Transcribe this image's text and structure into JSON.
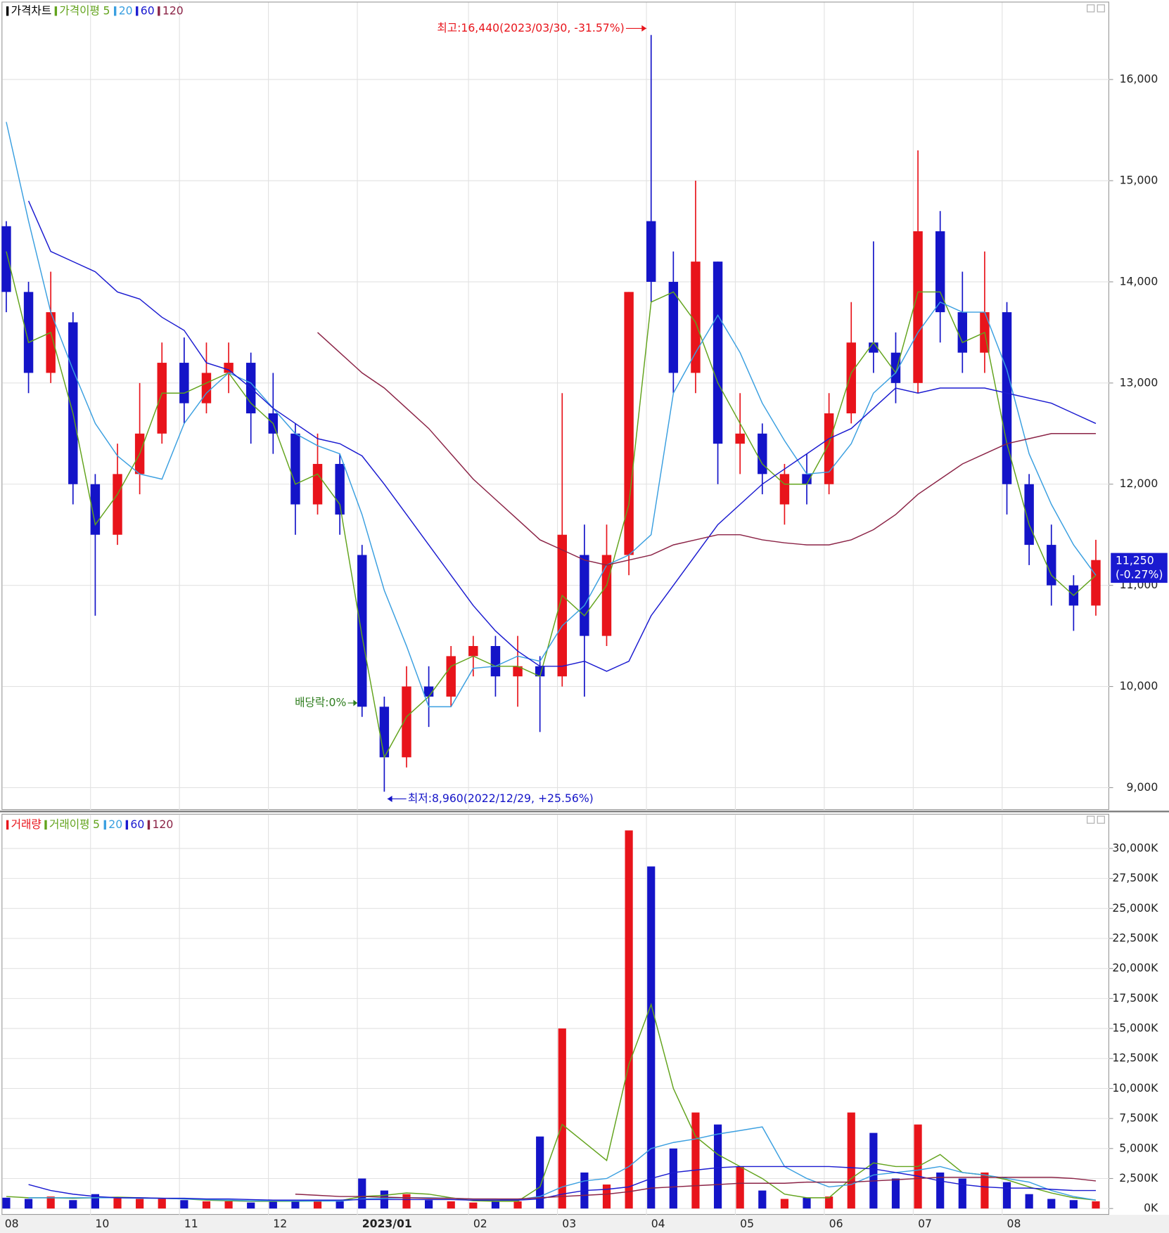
{
  "chart_data": [
    {
      "type": "candlestick",
      "legend_title": "가격차트",
      "ma_legend_title": "가격이평",
      "categories": [
        "08",
        null,
        null,
        null,
        "10",
        null,
        null,
        null,
        "11",
        null,
        null,
        null,
        "12",
        null,
        null,
        null,
        "2023/01",
        null,
        null,
        null,
        null,
        "02",
        null,
        null,
        null,
        "03",
        null,
        null,
        null,
        "04",
        null,
        null,
        null,
        "05",
        null,
        null,
        null,
        "06",
        null,
        null,
        null,
        "07",
        null,
        null,
        null,
        "08",
        null,
        null,
        null,
        null
      ],
      "open": [
        14550,
        13900,
        13100,
        13600,
        12000,
        11500,
        12100,
        12500,
        13200,
        12800,
        13100,
        13200,
        12700,
        12500,
        11800,
        12200,
        11300,
        9800,
        9300,
        10000,
        9900,
        10300,
        10400,
        10100,
        10200,
        10100,
        11300,
        10500,
        11300,
        14600,
        14000,
        13100,
        14200,
        12400,
        12500,
        11800,
        12100,
        12000,
        12700,
        13400,
        13300,
        13000,
        14500,
        13700,
        13300,
        13700,
        12000,
        11400,
        11000,
        10800
      ],
      "high": [
        14600,
        14000,
        14100,
        13700,
        12100,
        12400,
        13000,
        13400,
        13450,
        13400,
        13400,
        13300,
        13100,
        12600,
        12500,
        12300,
        11400,
        9900,
        10200,
        10200,
        10400,
        10500,
        10500,
        10500,
        10300,
        12900,
        11600,
        11600,
        13900,
        16440,
        14300,
        15000,
        14200,
        12900,
        12600,
        12200,
        12300,
        12900,
        13800,
        14400,
        13500,
        15300,
        14700,
        14100,
        14300,
        13800,
        12100,
        11600,
        11100,
        11450
      ],
      "low": [
        13700,
        12900,
        13000,
        11800,
        10700,
        11400,
        11900,
        12400,
        12600,
        12700,
        12900,
        12400,
        12300,
        11500,
        11700,
        11500,
        9700,
        8960,
        9200,
        9600,
        9800,
        10100,
        9900,
        9800,
        9550,
        10000,
        9900,
        10400,
        11100,
        13800,
        12900,
        12900,
        12000,
        12100,
        11900,
        11600,
        11800,
        11900,
        12600,
        13100,
        12800,
        12900,
        13400,
        13100,
        13100,
        11700,
        11200,
        10800,
        10550,
        10700
      ],
      "close": [
        13900,
        13100,
        13700,
        12000,
        11500,
        12100,
        12500,
        13200,
        12800,
        13100,
        13200,
        12700,
        12500,
        11800,
        12200,
        11700,
        9800,
        9300,
        10000,
        9900,
        10300,
        10400,
        10100,
        10200,
        10100,
        11500,
        10500,
        11300,
        13900,
        14000,
        13100,
        14200,
        12400,
        12500,
        12100,
        12100,
        12000,
        12700,
        13400,
        13300,
        13000,
        14500,
        13700,
        13300,
        13700,
        12000,
        11400,
        11000,
        10800,
        11250
      ],
      "up_color": "#e8141b",
      "down_color": "#1414c8",
      "series": [
        {
          "name": "5",
          "color": "#62a31c",
          "values": [
            14300,
            13400,
            13500,
            12700,
            11600,
            11900,
            12300,
            12900,
            12900,
            13000,
            13100,
            12800,
            12600,
            12000,
            12100,
            11800,
            10500,
            9300,
            9700,
            9900,
            10200,
            10300,
            10200,
            10200,
            10100,
            10900,
            10700,
            11000,
            11800,
            13800,
            13900,
            13600,
            13000,
            12600,
            12200,
            12000,
            12000,
            12400,
            13100,
            13400,
            13100,
            13900,
            13900,
            13400,
            13500,
            12400,
            11600,
            11100,
            10900,
            11100
          ]
        },
        {
          "name": "20",
          "color": "#3a9fe0",
          "values": [
            15580,
            14600,
            13700,
            13130,
            12600,
            12280,
            12100,
            12050,
            12600,
            12900,
            13100,
            13000,
            12750,
            12500,
            12380,
            12300,
            11700,
            10950,
            10400,
            9800,
            9800,
            10180,
            10200,
            10300,
            10250,
            10600,
            10800,
            11200,
            11300,
            11500,
            12900,
            13300,
            13670,
            13300,
            12800,
            12430,
            12100,
            12120,
            12400,
            12900,
            13100,
            13500,
            13800,
            13700,
            13700,
            13130,
            12300,
            11800,
            11400,
            11100
          ]
        },
        {
          "name": "60",
          "color": "#1a1ad0",
          "values": [
            null,
            14800,
            14300,
            14200,
            14100,
            13900,
            13830,
            13650,
            13520,
            13200,
            13130,
            12950,
            12750,
            12600,
            12450,
            12400,
            12280,
            12000,
            11700,
            11400,
            11100,
            10800,
            10550,
            10350,
            10200,
            10200,
            10250,
            10150,
            10250,
            10700,
            11000,
            11300,
            11600,
            11800,
            12000,
            12150,
            12300,
            12450,
            12550,
            12750,
            12950,
            12900,
            12950,
            12950,
            12950,
            12900,
            12850,
            12800,
            12700,
            12600
          ]
        },
        {
          "name": "120",
          "color": "#8b2346",
          "values": [
            null,
            null,
            null,
            null,
            null,
            null,
            null,
            null,
            null,
            null,
            null,
            null,
            null,
            null,
            13500,
            13300,
            13100,
            12950,
            12750,
            12550,
            12300,
            12050,
            11850,
            11650,
            11450,
            11350,
            11250,
            11200,
            11250,
            11300,
            11400,
            11450,
            11500,
            11500,
            11450,
            11420,
            11400,
            11400,
            11450,
            11550,
            11700,
            11900,
            12050,
            12200,
            12300,
            12400,
            12450,
            12500,
            12500,
            12500
          ]
        }
      ],
      "ylim": [
        8780,
        16785
      ],
      "yticks": [
        {
          "value": 9000,
          "label": "9,000"
        },
        {
          "value": 10000,
          "label": "10,000"
        },
        {
          "value": 11000,
          "label": "11,000"
        },
        {
          "value": 12000,
          "label": "12,000"
        },
        {
          "value": 13000,
          "label": "13,000"
        },
        {
          "value": 14000,
          "label": "14,000"
        },
        {
          "value": 15000,
          "label": "15,000"
        },
        {
          "value": 16000,
          "label": "16,000"
        }
      ],
      "grid": true,
      "high_label": "최고:16,440(2023/03/30, -31.57%)",
      "low_label": "최저:8,960(2022/12/29, +25.56%)",
      "dividend_label": "배당락:0%",
      "last_label": "11,250",
      "last_change": "(-0.27%)"
    },
    {
      "type": "bar",
      "legend_title": "거래량",
      "ma_legend_title": "거래이평",
      "values": [
        900,
        800,
        1000,
        700,
        1200,
        900,
        800,
        800,
        700,
        600,
        600,
        500,
        600,
        700,
        600,
        600,
        2500,
        1500,
        1200,
        700,
        600,
        500,
        600,
        600,
        6000,
        15000,
        3000,
        2000,
        31500,
        28500,
        5000,
        8000,
        7000,
        3500,
        1500,
        800,
        900,
        1000,
        8000,
        6300,
        2500,
        7000,
        3000,
        2500,
        3000,
        2200,
        1200,
        800,
        700,
        600
      ],
      "series": [
        {
          "name": "5",
          "color": "#62a31c",
          "values": [
            1000,
            900,
            900,
            850,
            900,
            950,
            900,
            850,
            800,
            700,
            650,
            600,
            600,
            600,
            620,
            650,
            1000,
            1100,
            1300,
            1200,
            900,
            650,
            600,
            600,
            1800,
            7000,
            5500,
            4000,
            12000,
            17000,
            10000,
            6000,
            4500,
            3500,
            2500,
            1200,
            900,
            900,
            2500,
            3800,
            3500,
            3500,
            4500,
            3000,
            2800,
            2400,
            1800,
            1300,
            900,
            700
          ]
        },
        {
          "name": "20",
          "color": "#3a9fe0",
          "values": [
            null,
            900,
            900,
            900,
            900,
            900,
            850,
            850,
            800,
            750,
            700,
            650,
            650,
            620,
            620,
            620,
            800,
            850,
            900,
            900,
            850,
            800,
            800,
            750,
            1000,
            1800,
            2300,
            2500,
            3500,
            5000,
            5500,
            5800,
            6200,
            6500,
            6800,
            3500,
            2500,
            1800,
            2000,
            2800,
            3000,
            3200,
            3500,
            3000,
            2800,
            2500,
            2200,
            1500,
            1000,
            700
          ]
        },
        {
          "name": "60",
          "color": "#1a1ad0",
          "values": [
            null,
            2000,
            1500,
            1200,
            1000,
            900,
            900,
            850,
            850,
            800,
            800,
            750,
            700,
            700,
            700,
            700,
            750,
            750,
            750,
            750,
            750,
            700,
            700,
            700,
            800,
            1200,
            1500,
            1600,
            1800,
            2500,
            3000,
            3200,
            3400,
            3500,
            3500,
            3500,
            3500,
            3500,
            3400,
            3300,
            3000,
            2700,
            2300,
            2000,
            1800,
            1700,
            1700,
            1600,
            1500,
            1500
          ]
        },
        {
          "name": "120",
          "color": "#8b2346",
          "values": [
            null,
            null,
            null,
            null,
            null,
            null,
            null,
            null,
            null,
            null,
            null,
            null,
            null,
            1200,
            1100,
            1000,
            1000,
            950,
            900,
            850,
            850,
            800,
            800,
            800,
            900,
            1000,
            1100,
            1200,
            1400,
            1700,
            1800,
            1900,
            2000,
            2100,
            2100,
            2100,
            2200,
            2200,
            2200,
            2300,
            2400,
            2500,
            2600,
            2600,
            2600,
            2600,
            2600,
            2600,
            2500,
            2300
          ]
        }
      ],
      "ylim": [
        -524,
        32882
      ],
      "yticks": [
        {
          "value": 0,
          "label": "0K"
        },
        {
          "value": 2500,
          "label": "2,500K"
        },
        {
          "value": 5000,
          "label": "5,000K"
        },
        {
          "value": 7500,
          "label": "7,500K"
        },
        {
          "value": 10000,
          "label": "10,000K"
        },
        {
          "value": 12500,
          "label": "12,500K"
        },
        {
          "value": 15000,
          "label": "15,000K"
        },
        {
          "value": 17500,
          "label": "17,500K"
        },
        {
          "value": 20000,
          "label": "20,000K"
        },
        {
          "value": 22500,
          "label": "22,500K"
        },
        {
          "value": 25000,
          "label": "25,000K"
        },
        {
          "value": 27500,
          "label": "27,500K"
        },
        {
          "value": 30000,
          "label": "30,000K"
        }
      ],
      "grid": true
    }
  ]
}
